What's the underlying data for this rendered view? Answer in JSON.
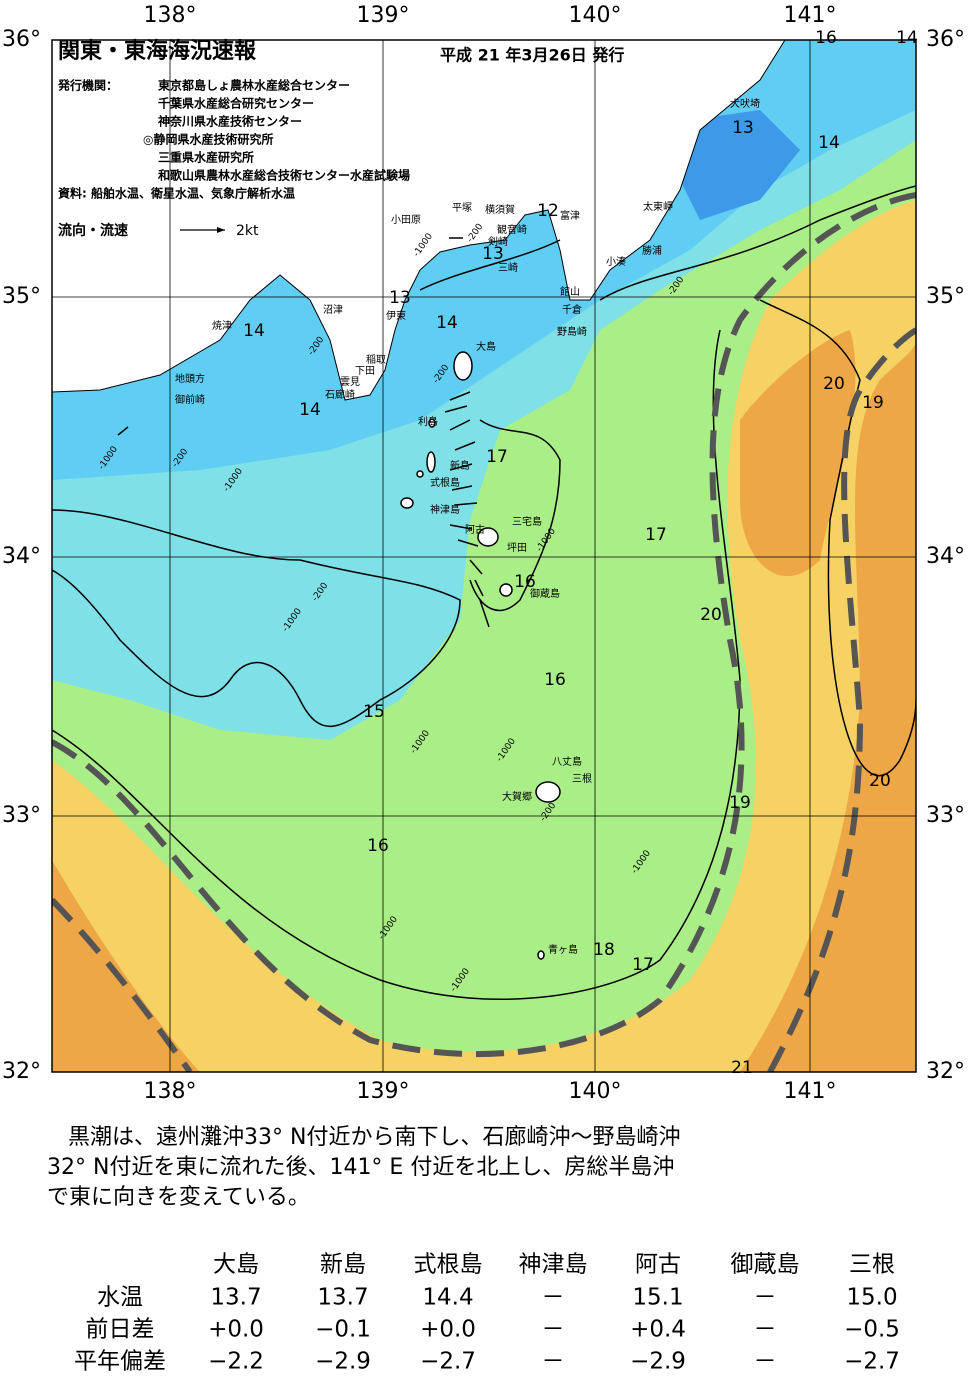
{
  "header": {
    "title": "関東・東海海況速報",
    "date": "平成 21 年3月26日 発行",
    "issuer_label": "発行機関：",
    "issuers": [
      "東京都島しょ農林水産総合センター",
      "千葉県水産総合研究センター",
      "神奈川県水産技術センター",
      "◎静岡県水産技術研究所",
      "三重県水産研究所",
      "和歌山県農林水産総合技術センター水産試験場"
    ],
    "source": "資料: 船舶水温、衛星水温、気象庁解析水温",
    "legend_label": "流向・流速",
    "legend_speed": "2kt"
  },
  "axes": {
    "lon_labels": [
      "138°",
      "139°",
      "140°",
      "141°"
    ],
    "lat_labels": [
      "36°",
      "35°",
      "34°",
      "33°",
      "32°"
    ]
  },
  "contour_labels": [
    "16",
    "14",
    "13",
    "14",
    "12",
    "13",
    "13",
    "14",
    "14",
    "14",
    "17",
    "16",
    "17",
    "20",
    "19",
    "20",
    "16",
    "15",
    "19",
    "20",
    "16",
    "18",
    "17",
    "21"
  ],
  "place_names": [
    "犬吠埼",
    "太東岬",
    "勝浦",
    "小湊",
    "富津",
    "横須賀",
    "平塚",
    "小田原",
    "観音崎",
    "剣崎",
    "三崎",
    "館山",
    "千倉",
    "野島崎",
    "沼津",
    "伊東",
    "焼津",
    "稲取",
    "下田",
    "雲見",
    "石廊崎",
    "地頭方",
    "御前崎",
    "大島",
    "利島",
    "新島",
    "式根島",
    "神津島",
    "三宅島",
    "阿古",
    "坪田",
    "御蔵島",
    "八丈島",
    "三根",
    "大賀郷",
    "青ヶ島"
  ],
  "depth_labels": [
    "-1000",
    "-200",
    "-200",
    "-200",
    "-200",
    "-1000",
    "-200",
    "-1000",
    "-1000",
    "-200",
    "-1000",
    "-1000",
    "-1000",
    "-200",
    "-1000",
    "-1000",
    "-1000"
  ],
  "description": [
    "黒潮は、遠州灘沖33° N付近から南下し、石廊崎沖～野島崎沖",
    "32° N付近を東に流れた後、141° E 付近を北上し、房総半島沖",
    "で東に向きを変えている。"
  ],
  "table": {
    "columns": [
      "大島",
      "新島",
      "式根島",
      "神津島",
      "阿古",
      "御蔵島",
      "三根"
    ],
    "rows": [
      [
        "水温",
        "13.7",
        "13.7",
        "14.4",
        "－",
        "15.1",
        "－",
        "15.0"
      ],
      [
        "前日差",
        "+0.0",
        "−0.1",
        "+0.0",
        "－",
        "+0.4",
        "－",
        "−0.5"
      ],
      [
        "平年偏差",
        "−2.2",
        "−2.9",
        "−2.7",
        "－",
        "−2.9",
        "－",
        "−2.7"
      ]
    ]
  }
}
